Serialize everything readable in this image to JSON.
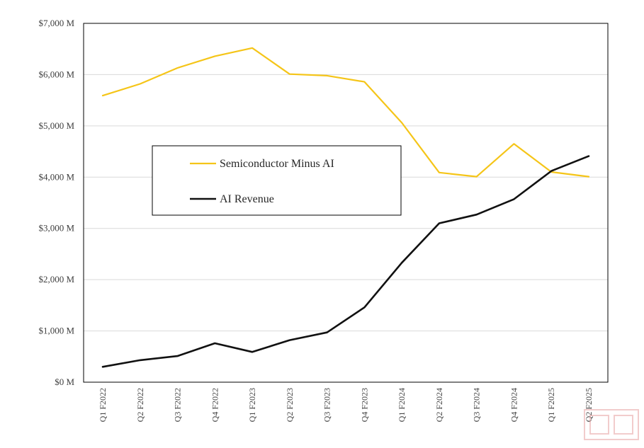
{
  "chart_data": {
    "type": "line",
    "title": "",
    "xlabel": "",
    "ylabel": "",
    "categories": [
      "Q1 F2022",
      "Q2 F2022",
      "Q3 F2022",
      "Q4 F2022",
      "Q1 F2023",
      "Q2 F2023",
      "Q3 F2023",
      "Q4 F2023",
      "Q1 F2024",
      "Q2 F2024",
      "Q3 F2024",
      "Q4 F2024",
      "Q1 F2025",
      "Q2 F2025"
    ],
    "ylim": [
      0,
      7000
    ],
    "yticks": [
      0,
      1000,
      2000,
      3000,
      4000,
      5000,
      6000,
      7000
    ],
    "ytick_labels": [
      "$0 M",
      "$1,000 M",
      "$2,000 M",
      "$3,000 M",
      "$4,000 M",
      "$5,000 M",
      "$6,000 M",
      "$7,000 M"
    ],
    "grid": true,
    "legend_position": "center-left",
    "series": [
      {
        "name": "Semiconductor Minus AI",
        "color": "#f5c518",
        "values": [
          5590,
          5820,
          6130,
          6360,
          6520,
          6010,
          5980,
          5860,
          5060,
          4090,
          4010,
          4650,
          4100,
          4010
        ]
      },
      {
        "name": "AI Revenue",
        "color": "#111111",
        "values": [
          300,
          430,
          510,
          760,
          590,
          820,
          970,
          1460,
          2330,
          3100,
          3270,
          3570,
          4120,
          4410
        ]
      }
    ]
  }
}
